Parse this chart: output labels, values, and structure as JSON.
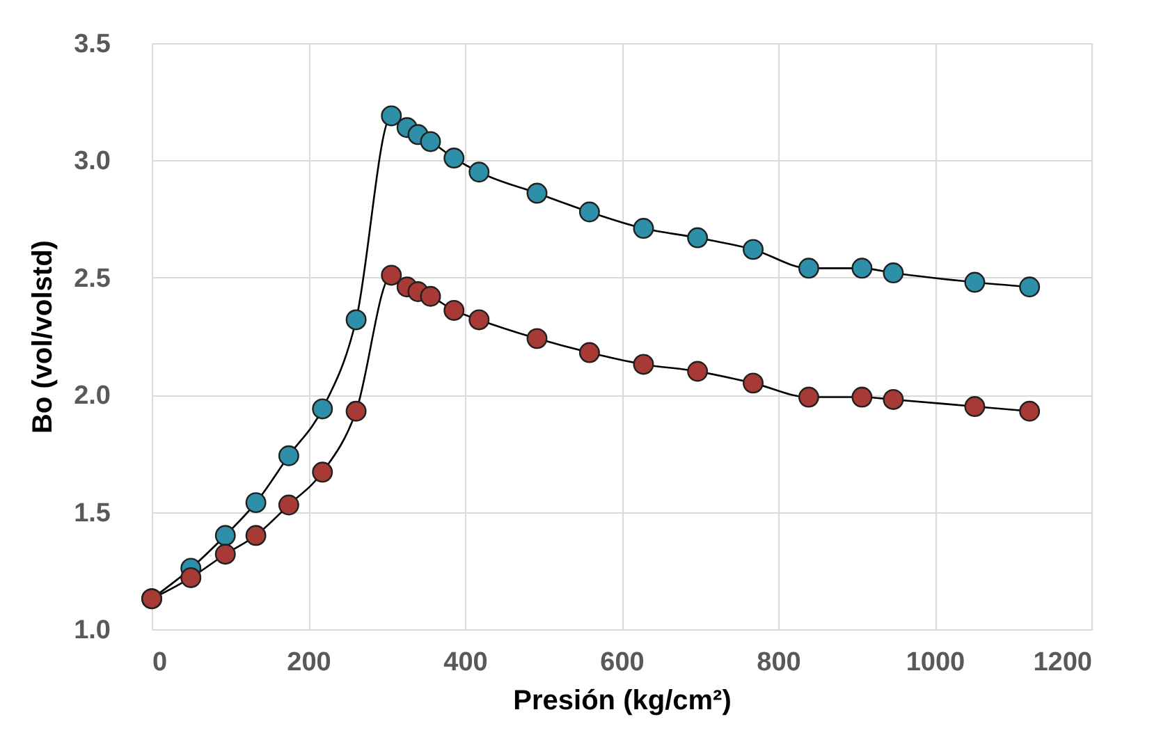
{
  "chart_data": {
    "type": "line",
    "xlabel": "Presión (kg/cm²)",
    "ylabel": "Bo (vol/volstd)",
    "x": [
      0,
      50,
      94,
      133,
      175,
      218,
      261,
      306,
      326,
      340,
      356,
      386,
      418,
      492,
      559,
      628,
      697,
      768,
      839,
      907,
      947,
      1051,
      1121
    ],
    "series": [
      {
        "color": "#2e8fa8",
        "values": [
          1.13,
          1.26,
          1.4,
          1.54,
          1.74,
          1.94,
          2.32,
          3.19,
          3.14,
          3.11,
          3.08,
          3.01,
          2.95,
          2.86,
          2.78,
          2.71,
          2.67,
          2.62,
          2.54,
          2.54,
          2.52,
          2.48,
          2.46
        ]
      },
      {
        "color": "#a83a36",
        "values": [
          1.13,
          1.22,
          1.32,
          1.4,
          1.53,
          1.67,
          1.93,
          2.51,
          2.46,
          2.44,
          2.42,
          2.36,
          2.32,
          2.24,
          2.18,
          2.13,
          2.1,
          2.05,
          1.99,
          1.99,
          1.98,
          1.95,
          1.93
        ]
      }
    ],
    "xlim": [
      0,
      1200
    ],
    "xticks": [
      0,
      200,
      400,
      600,
      800,
      1000,
      1200
    ],
    "ylim": [
      1.0,
      3.5
    ],
    "yticks": [
      {
        "value": 1,
        "label": "1.0"
      },
      1.5,
      {
        "value": 2,
        "label": "2.0"
      },
      2.5,
      {
        "value": 3,
        "label": "3.0"
      },
      3.5
    ],
    "grid": true,
    "marker": "circle",
    "line_style": "solid",
    "legend": false
  }
}
